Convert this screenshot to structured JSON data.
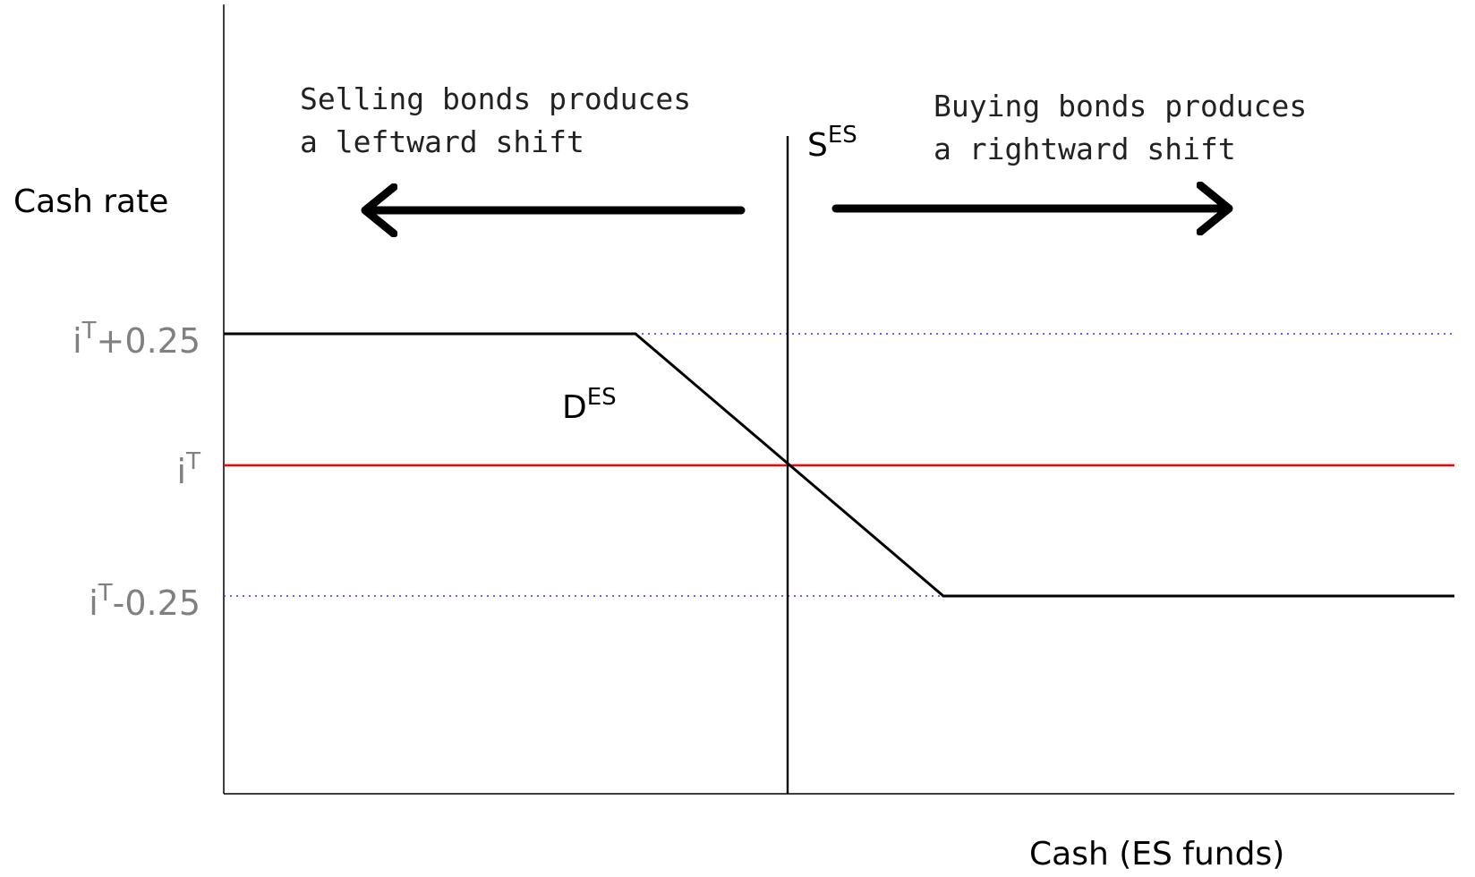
{
  "diagram": {
    "y_axis_label": "Cash rate",
    "x_axis_label": "Cash (ES funds)",
    "y_ticks": {
      "upper": {
        "base": "i",
        "sup": "T",
        "suffix": "+0.25"
      },
      "target": {
        "base": "i",
        "sup": "T",
        "suffix": ""
      },
      "lower": {
        "base": "i",
        "sup": "T",
        "suffix": "-0.25"
      }
    },
    "supply_label": {
      "base": "S",
      "sup": "ES"
    },
    "demand_label": {
      "base": "D",
      "sup": "ES"
    },
    "left_note": {
      "line1": "Selling bonds produces",
      "line2": "a leftward shift"
    },
    "right_note": {
      "line1": "Buying bonds produces",
      "line2": "a rightward shift"
    },
    "colors": {
      "target_line": "#ff0000",
      "corridor_lines": "#3333ff",
      "curves": "#000000",
      "tick_text": "#808080"
    }
  }
}
